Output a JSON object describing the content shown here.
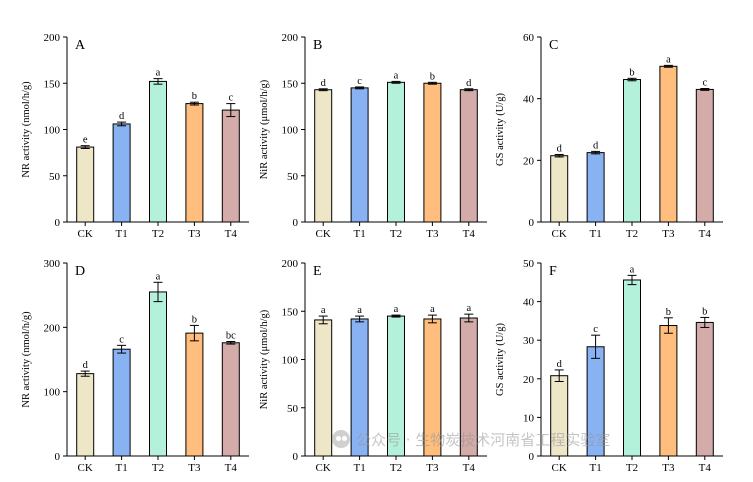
{
  "watermark": {
    "text": "公众号 · 生物炭技术河南省工程实验室",
    "icon": "wechat-icon"
  },
  "chart_data": [
    {
      "panel": "A",
      "type": "bar",
      "categories": [
        "CK",
        "T1",
        "T2",
        "T3",
        "T4"
      ],
      "values": [
        81,
        106,
        152,
        128,
        121
      ],
      "errors": [
        1.5,
        2,
        3,
        1.5,
        7
      ],
      "letters": [
        "e",
        "d",
        "a",
        "b",
        "c"
      ],
      "ylabel": "NR activity (nmol/h/g)",
      "ylim": [
        0,
        200
      ],
      "ticks": [
        0,
        50,
        100,
        150,
        200
      ],
      "colors": [
        "#EDE7C8",
        "#89B2F2",
        "#B4F1DA",
        "#FFBD7E",
        "#D3ABA9"
      ]
    },
    {
      "panel": "B",
      "type": "bar",
      "categories": [
        "CK",
        "T1",
        "T2",
        "T3",
        "T4"
      ],
      "values": [
        143,
        145,
        151,
        150,
        143
      ],
      "errors": [
        1,
        1,
        1,
        1,
        1
      ],
      "letters": [
        "d",
        "c",
        "a",
        "b",
        "d"
      ],
      "ylabel": "NiR activity (μmol/h/g)",
      "ylim": [
        0,
        200
      ],
      "ticks": [
        0,
        50,
        100,
        150,
        200
      ],
      "colors": [
        "#EDE7C8",
        "#89B2F2",
        "#B4F1DA",
        "#FFBD7E",
        "#D3ABA9"
      ]
    },
    {
      "panel": "C",
      "type": "bar",
      "categories": [
        "CK",
        "T1",
        "T2",
        "T3",
        "T4"
      ],
      "values": [
        21.5,
        22.5,
        46.2,
        50.5,
        43.0
      ],
      "errors": [
        0.4,
        0.4,
        0.4,
        0.3,
        0.3
      ],
      "letters": [
        "d",
        "d",
        "b",
        "a",
        "c"
      ],
      "ylabel": "GS activity (U/g)",
      "ylim": [
        0,
        60
      ],
      "ticks": [
        0,
        20,
        40,
        60
      ],
      "colors": [
        "#EDE7C8",
        "#89B2F2",
        "#B4F1DA",
        "#FFBD7E",
        "#D3ABA9"
      ]
    },
    {
      "panel": "D",
      "type": "bar",
      "categories": [
        "CK",
        "T1",
        "T2",
        "T3",
        "T4"
      ],
      "values": [
        128,
        166,
        255,
        191,
        176
      ],
      "errors": [
        4,
        6,
        15,
        12,
        2
      ],
      "letters": [
        "d",
        "c",
        "a",
        "b",
        "bc"
      ],
      "ylabel": "NR activity (nmol/h/g)",
      "ylim": [
        0,
        300
      ],
      "ticks": [
        0,
        100,
        200,
        300
      ],
      "colors": [
        "#EDE7C8",
        "#89B2F2",
        "#B4F1DA",
        "#FFBD7E",
        "#D3ABA9"
      ]
    },
    {
      "panel": "E",
      "type": "bar",
      "categories": [
        "CK",
        "T1",
        "T2",
        "T3",
        "T4"
      ],
      "values": [
        141,
        142,
        145,
        142,
        143
      ],
      "errors": [
        4,
        3,
        1,
        4,
        4
      ],
      "letters": [
        "a",
        "a",
        "a",
        "a",
        "a"
      ],
      "ylabel": "NiR activity (μmol/h/g)",
      "ylim": [
        0,
        200
      ],
      "ticks": [
        0,
        50,
        100,
        150,
        200
      ],
      "colors": [
        "#EDE7C8",
        "#89B2F2",
        "#B4F1DA",
        "#FFBD7E",
        "#D3ABA9"
      ]
    },
    {
      "panel": "F",
      "type": "bar",
      "categories": [
        "CK",
        "T1",
        "T2",
        "T3",
        "T4"
      ],
      "values": [
        20.8,
        28.3,
        45.6,
        33.8,
        34.6
      ],
      "errors": [
        1.5,
        3,
        1.2,
        2,
        1.3
      ],
      "letters": [
        "d",
        "c",
        "a",
        "b",
        "b"
      ],
      "ylabel": "GS activity (U/g)",
      "ylim": [
        0,
        50
      ],
      "ticks": [
        0,
        10,
        20,
        30,
        40,
        50
      ],
      "colors": [
        "#EDE7C8",
        "#89B2F2",
        "#B4F1DA",
        "#FFBD7E",
        "#D3ABA9"
      ]
    }
  ]
}
